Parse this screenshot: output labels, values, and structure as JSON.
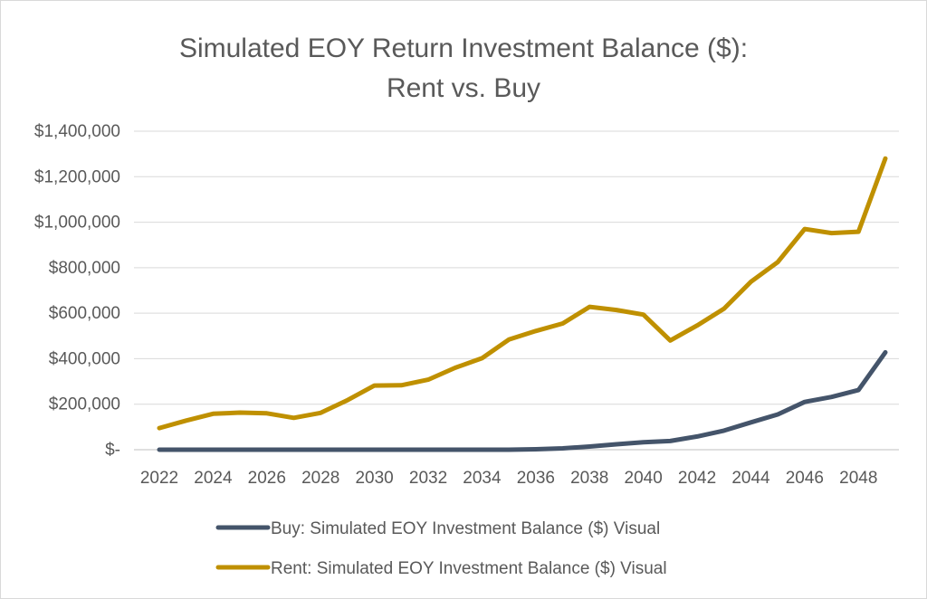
{
  "chart_data": {
    "type": "line",
    "title_line1": "Simulated EOY Return Investment Balance ($):",
    "title_line2": "Rent vs. Buy",
    "xlabel": "",
    "ylabel": "",
    "x": [
      2022,
      2023,
      2024,
      2025,
      2026,
      2027,
      2028,
      2029,
      2030,
      2031,
      2032,
      2033,
      2034,
      2035,
      2036,
      2037,
      2038,
      2039,
      2040,
      2041,
      2042,
      2043,
      2044,
      2045,
      2046,
      2047,
      2048,
      2049
    ],
    "x_tick_labels": [
      "2022",
      "2024",
      "2026",
      "2028",
      "2030",
      "2032",
      "2034",
      "2036",
      "2038",
      "2040",
      "2042",
      "2044",
      "2046",
      "2048"
    ],
    "y_tick_labels": [
      "$-",
      "$200,000",
      "$400,000",
      "$600,000",
      "$800,000",
      "$1,000,000",
      "$1,200,000",
      "$1,400,000"
    ],
    "ylim": [
      0,
      1400000
    ],
    "grid": true,
    "legend_position": "bottom",
    "series": [
      {
        "name": "Buy: Simulated EOY Investment Balance ($) Visual",
        "color": "#44546a",
        "values": [
          0,
          0,
          0,
          0,
          0,
          0,
          0,
          0,
          0,
          0,
          0,
          0,
          0,
          0,
          2000,
          6000,
          14000,
          24000,
          33000,
          38000,
          58000,
          84000,
          120000,
          155000,
          210000,
          232000,
          262000,
          428000
        ]
      },
      {
        "name": "Rent: Simulated EOY Investment Balance ($) Visual",
        "color": "#bf9000",
        "values": [
          95000,
          128000,
          158000,
          163000,
          160000,
          140000,
          162000,
          218000,
          282000,
          283000,
          308000,
          360000,
          402000,
          484000,
          522000,
          555000,
          628000,
          614000,
          594000,
          480000,
          546000,
          620000,
          738000,
          825000,
          970000,
          952000,
          958000,
          1280000
        ]
      }
    ]
  }
}
